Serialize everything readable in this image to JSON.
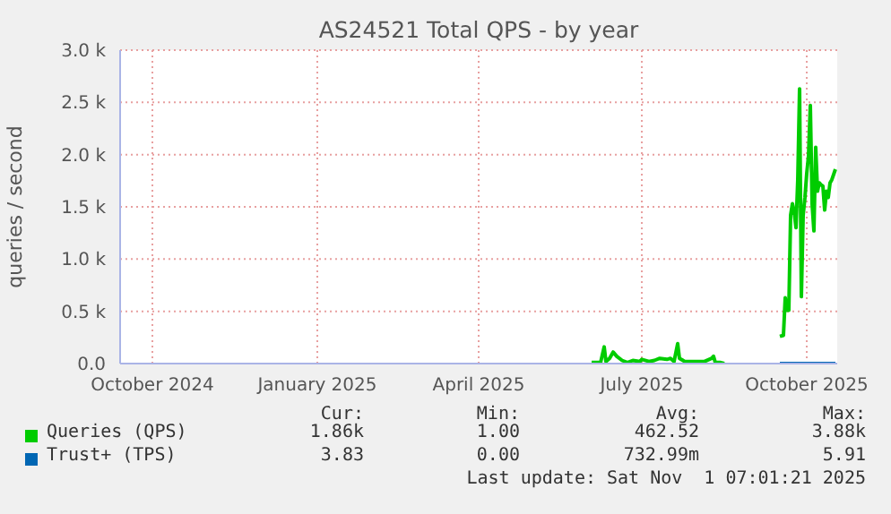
{
  "chart_data": {
    "type": "line",
    "title": "AS24521 Total QPS - by year",
    "ylabel": "queries / second",
    "xlim": [
      "2024-09-27",
      "2025-11-01"
    ],
    "xticks": [
      {
        "value": "2024-10-15",
        "label": "October 2024"
      },
      {
        "value": "2025-01-15",
        "label": "January 2025"
      },
      {
        "value": "2025-04-15",
        "label": "April 2025"
      },
      {
        "value": "2025-07-15",
        "label": "July 2025"
      },
      {
        "value": "2025-10-15",
        "label": "October 2025"
      }
    ],
    "ylim": [
      0,
      3000
    ],
    "yticks": [
      {
        "value": 0,
        "label": "0.0"
      },
      {
        "value": 500,
        "label": "0.5 k"
      },
      {
        "value": 1000,
        "label": "1.0 k"
      },
      {
        "value": 1500,
        "label": "1.5 k"
      },
      {
        "value": 2000,
        "label": "2.0 k"
      },
      {
        "value": 2500,
        "label": "2.5 k"
      },
      {
        "value": 3000,
        "label": "3.0 k"
      }
    ],
    "grid": true,
    "legend": "bottom",
    "series": [
      {
        "name": "Queries (QPS)",
        "color": "#00cc00",
        "x": [
          "2025-06-17",
          "2025-06-22",
          "2025-06-24",
          "2025-06-25",
          "2025-06-27",
          "2025-06-29",
          "2025-07-01",
          "2025-07-04",
          "2025-07-07",
          "2025-07-10",
          "2025-07-14",
          "2025-07-15",
          "2025-07-19",
          "2025-07-22",
          "2025-07-25",
          "2025-07-29",
          "2025-07-31",
          "2025-08-02",
          "2025-08-04",
          "2025-08-05",
          "2025-08-08",
          "2025-08-13",
          "2025-08-19",
          "2025-08-23",
          "2025-08-24",
          "2025-08-25",
          "2025-08-28",
          "2025-08-30",
          "2025-09-15",
          "2025-09-30",
          "2025-10-02",
          "2025-10-03",
          "2025-10-04",
          "2025-10-05",
          "2025-10-06",
          "2025-10-07",
          "2025-10-08",
          "2025-10-09",
          "2025-10-10",
          "2025-10-11",
          "2025-10-12",
          "2025-10-13",
          "2025-10-14",
          "2025-10-15",
          "2025-10-16",
          "2025-10-17",
          "2025-10-18",
          "2025-10-19",
          "2025-10-20",
          "2025-10-21",
          "2025-10-22",
          "2025-10-23",
          "2025-10-24",
          "2025-10-25",
          "2025-10-26",
          "2025-10-27",
          "2025-10-28",
          "2025-10-29",
          "2025-10-31"
        ],
        "values": [
          10,
          10,
          160,
          20,
          50,
          110,
          70,
          30,
          10,
          30,
          20,
          40,
          20,
          30,
          50,
          40,
          50,
          20,
          190,
          50,
          20,
          20,
          20,
          50,
          70,
          10,
          10,
          0,
          null,
          260,
          270,
          630,
          510,
          510,
          1420,
          1530,
          1450,
          1300,
          1760,
          2630,
          640,
          1420,
          1590,
          1820,
          1990,
          2470,
          1530,
          1270,
          2070,
          1650,
          1730,
          1710,
          1700,
          1470,
          1650,
          1590,
          1730,
          1760,
          1860
        ]
      },
      {
        "name": "Trust+ (TPS)",
        "color": "#0066b3",
        "x": [
          "2025-09-30",
          "2025-10-31"
        ],
        "values": [
          0,
          0
        ]
      }
    ],
    "annotations": [
      "Cur:",
      "Min:",
      "Avg:",
      "Max:",
      "1.86k",
      "1.00",
      "462.52",
      "3.88k",
      "3.83",
      "0.00",
      "732.99m",
      "5.91",
      "Last update: Sat Nov  1 07:01:21 2025"
    ]
  }
}
